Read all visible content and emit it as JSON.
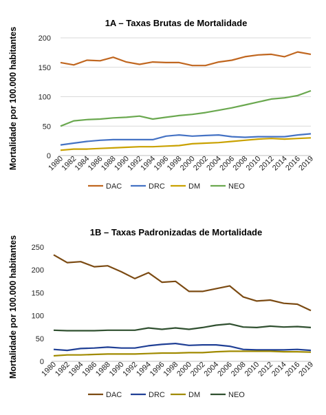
{
  "chart_data": [
    {
      "type": "line",
      "title": "1A – Taxas Brutas de Mortalidade",
      "ylabel": "Mortalidade por 100.000 habitantes",
      "xlabel": "",
      "ylim": [
        0,
        200
      ],
      "yticks": [
        "0",
        "50",
        "100",
        "150",
        "200"
      ],
      "grid": true,
      "legend_position": "bottom",
      "categories": [
        "1980",
        "1982",
        "1984",
        "1986",
        "1988",
        "1990",
        "1992",
        "1994",
        "1996",
        "1998",
        "2000",
        "2002",
        "2004",
        "2006",
        "2008",
        "2010",
        "2012",
        "2014",
        "2016",
        "2019"
      ],
      "series": [
        {
          "name": "DAC",
          "color": "#c0661f",
          "values": [
            158,
            154,
            162,
            161,
            167,
            159,
            155,
            159,
            158,
            158,
            153,
            153,
            159,
            162,
            168,
            171,
            172,
            168,
            176,
            172
          ]
        },
        {
          "name": "DRC",
          "color": "#4472c4",
          "values": [
            18,
            21,
            24,
            26,
            27,
            27,
            27,
            27,
            33,
            35,
            33,
            34,
            35,
            32,
            31,
            32,
            32,
            32,
            35,
            37
          ]
        },
        {
          "name": "DM",
          "color": "#c9a100",
          "values": [
            9,
            11,
            11,
            12,
            13,
            14,
            15,
            15,
            16,
            17,
            20,
            21,
            22,
            24,
            26,
            28,
            29,
            28,
            29,
            30
          ]
        },
        {
          "name": "NEO",
          "color": "#6aa84f",
          "values": [
            50,
            59,
            61,
            62,
            64,
            65,
            67,
            62,
            65,
            68,
            70,
            73,
            77,
            81,
            86,
            91,
            96,
            98,
            102,
            110
          ]
        }
      ]
    },
    {
      "type": "line",
      "title": "1B – Taxas Padronizadas de Mortalidade",
      "ylabel": "Mortalidade por 100.000 habitantes",
      "xlabel": "",
      "ylim": [
        0,
        250
      ],
      "yticks": [
        "0",
        "50",
        "100",
        "150",
        "200",
        "250"
      ],
      "grid": false,
      "legend_position": "bottom",
      "categories": [
        "1980",
        "1982",
        "1984",
        "1986",
        "1988",
        "1990",
        "1992",
        "1994",
        "1996",
        "1998",
        "2000",
        "2002",
        "2004",
        "2006",
        "2008",
        "2010",
        "2012",
        "2014",
        "2016",
        "2019"
      ],
      "series": [
        {
          "name": "DAC",
          "color": "#7b4a12",
          "values": [
            233,
            216,
            218,
            207,
            209,
            196,
            181,
            194,
            173,
            175,
            153,
            153,
            159,
            165,
            141,
            132,
            134,
            127,
            125,
            111
          ]
        },
        {
          "name": "DRC",
          "color": "#1f3f95",
          "values": [
            26,
            24,
            28,
            29,
            31,
            29,
            29,
            34,
            37,
            39,
            35,
            36,
            36,
            33,
            26,
            25,
            25,
            25,
            26,
            24
          ]
        },
        {
          "name": "DM",
          "color": "#a08a00",
          "values": [
            12,
            14,
            14,
            15,
            16,
            16,
            16,
            17,
            18,
            18,
            19,
            19,
            21,
            22,
            22,
            22,
            22,
            21,
            21,
            20
          ]
        },
        {
          "name": "NEO",
          "color": "#2f4f2f",
          "values": [
            68,
            67,
            67,
            67,
            68,
            68,
            68,
            73,
            70,
            73,
            70,
            74,
            79,
            82,
            75,
            74,
            77,
            75,
            76,
            74
          ]
        }
      ]
    }
  ]
}
